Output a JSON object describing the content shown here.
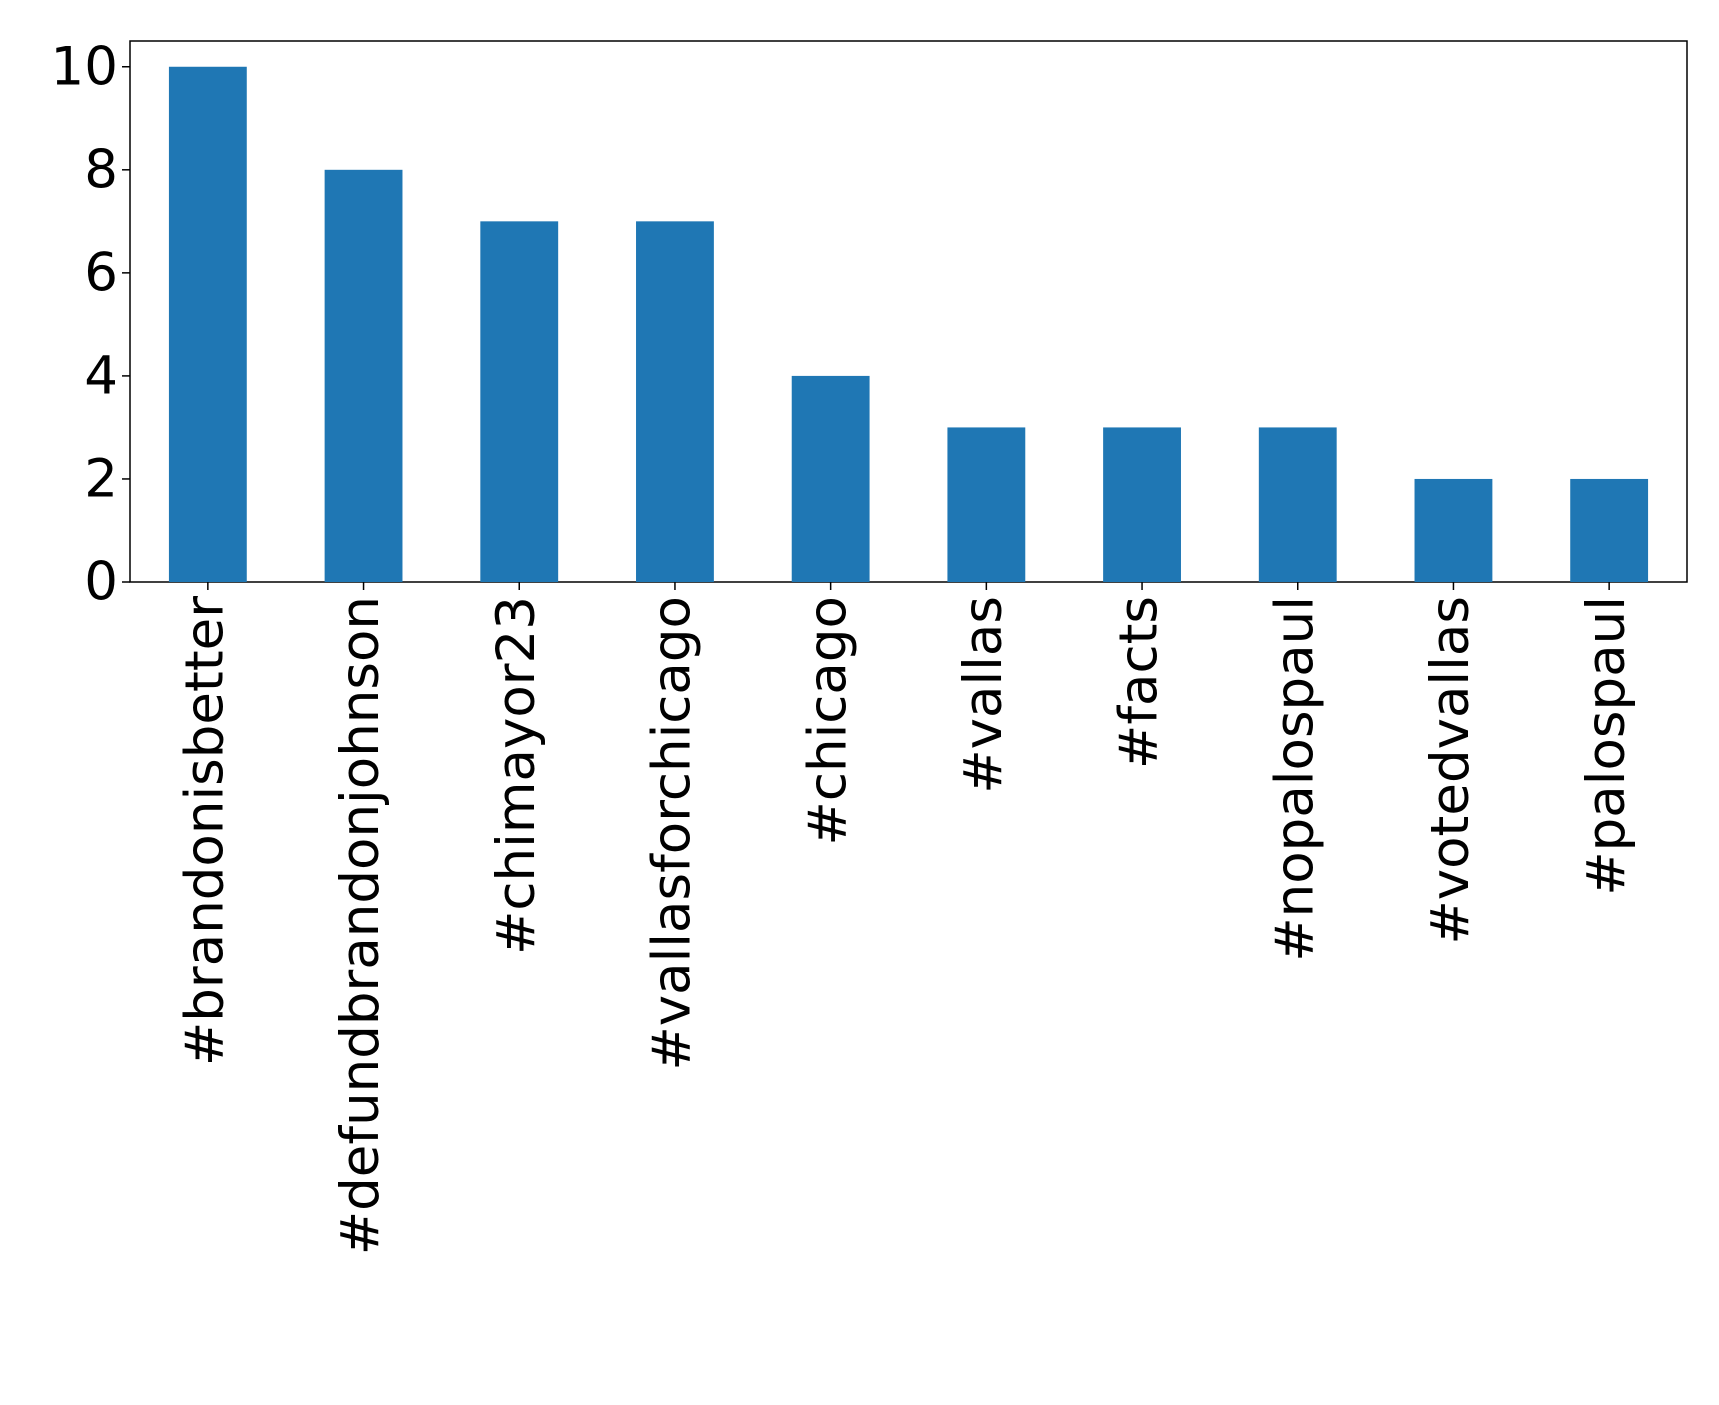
{
  "chart_data": {
    "type": "bar",
    "categories": [
      "#brandonisbetter",
      "#defundbrandonjohnson",
      "#chimayor23",
      "#vallasforchicago",
      "#chicago",
      "#vallas",
      "#facts",
      "#nopalospaul",
      "#votedvallas",
      "#palospaul"
    ],
    "values": [
      10,
      8,
      7,
      7,
      4,
      3,
      3,
      3,
      2,
      2
    ],
    "color": "#1f77b4",
    "ylim": [
      0,
      10.5
    ],
    "yticks": [
      0,
      2,
      4,
      6,
      8,
      10
    ],
    "grid": false
  }
}
